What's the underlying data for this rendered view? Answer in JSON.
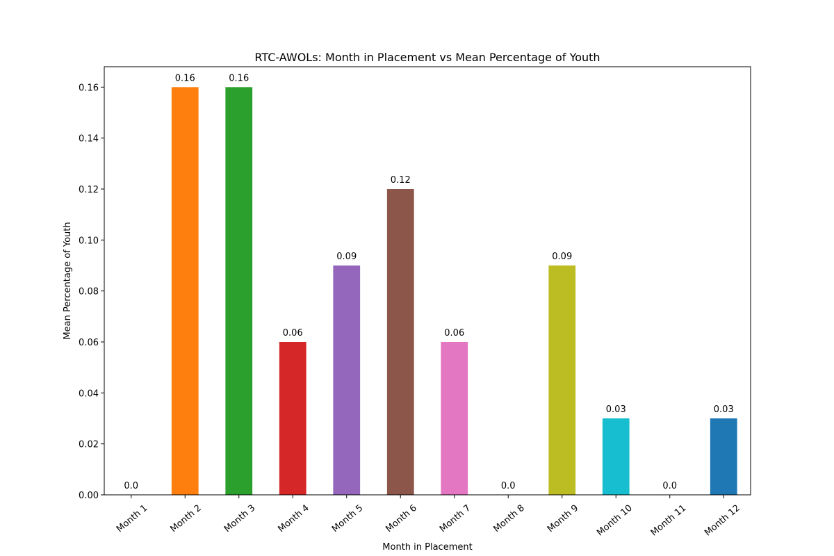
{
  "chart_data": {
    "type": "bar",
    "title": "RTC-AWOLs: Month in Placement vs Mean Percentage of Youth",
    "xlabel": "Month in Placement",
    "ylabel": "Mean Percentage of Youth",
    "categories": [
      "Month 1",
      "Month 2",
      "Month 3",
      "Month 4",
      "Month 5",
      "Month 6",
      "Month 7",
      "Month 8",
      "Month 9",
      "Month 10",
      "Month 11",
      "Month 12"
    ],
    "values": [
      0.0,
      0.16,
      0.16,
      0.06,
      0.09,
      0.12,
      0.06,
      0.0,
      0.09,
      0.03,
      0.0,
      0.03
    ],
    "value_labels": [
      "0.0",
      "0.16",
      "0.16",
      "0.06",
      "0.09",
      "0.12",
      "0.06",
      "0.0",
      "0.09",
      "0.03",
      "0.0",
      "0.03"
    ],
    "colors": [
      "#1f77b4",
      "#ff7f0e",
      "#2ca02c",
      "#d62728",
      "#9467bd",
      "#8c564b",
      "#e377c2",
      "#7f7f7f",
      "#bcbd22",
      "#17becf",
      "#1f77b4",
      "#1f77b4"
    ],
    "ylim": [
      0,
      0.168
    ],
    "yticks": [
      "0.00",
      "0.02",
      "0.04",
      "0.06",
      "0.08",
      "0.10",
      "0.12",
      "0.14",
      "0.16"
    ],
    "ytick_values": [
      0,
      0.02,
      0.04,
      0.06,
      0.08,
      0.1,
      0.12,
      0.14,
      0.16
    ],
    "grid": false,
    "legend": "none"
  }
}
